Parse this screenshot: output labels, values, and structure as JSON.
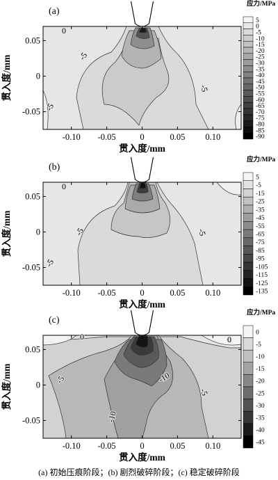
{
  "caption": "(a) 初始压痕阶段；(b) 剧烈破碎阶段；(c) 稳定破碎阶段",
  "chart_data": [
    {
      "type": "heatmap",
      "panel_label": "(a)",
      "xlabel": "贯入度/mm",
      "ylabel": "贯入度/mm",
      "xlim": [
        -0.14,
        0.14
      ],
      "ylim": [
        -0.075,
        0.07
      ],
      "xticks": [
        -0.1,
        -0.05,
        0,
        0.05,
        0.1
      ],
      "xtick_labels": [
        "-0.10",
        "-0.05",
        "0",
        "0.05",
        "0.10"
      ],
      "yticks": [
        -0.05,
        0,
        0.05
      ],
      "ytick_labels": [
        "-0.05",
        "0",
        "0.05"
      ],
      "colorbar_title": "应力/MPa",
      "colorbar_levels": [
        5,
        0,
        -5,
        -10,
        -15,
        -20,
        -25,
        -30,
        -35,
        -40,
        -45,
        -50,
        -55,
        -60,
        -65,
        -70,
        -75,
        -80,
        -85,
        -90
      ],
      "contour_labels": [
        "0",
        "-5",
        "-5",
        "-5"
      ],
      "peak_stress": -90
    },
    {
      "type": "heatmap",
      "panel_label": "(b)",
      "xlabel": "贯入度/mm",
      "ylabel": "贯入度/mm",
      "xlim": [
        -0.14,
        0.14
      ],
      "ylim": [
        -0.075,
        0.07
      ],
      "xticks": [
        -0.1,
        -0.05,
        0,
        0.05,
        0.1
      ],
      "xtick_labels": [
        "-0.10",
        "-0.05",
        "0",
        "0.05",
        "0.10"
      ],
      "yticks": [
        -0.05,
        0,
        0.05
      ],
      "ytick_labels": [
        "-0.05",
        "0",
        "0.05"
      ],
      "colorbar_title": "应力/MPa",
      "colorbar_levels": [
        5,
        -5,
        -15,
        -25,
        -35,
        -45,
        -55,
        -65,
        -75,
        -85,
        -95,
        -105,
        -115,
        -125,
        -135
      ],
      "contour_labels": [
        "0",
        "-5",
        "-5",
        "-5"
      ],
      "peak_stress": -135
    },
    {
      "type": "heatmap",
      "panel_label": "(c)",
      "xlabel": "贯入度/mm",
      "ylabel": "贯入度/mm",
      "xlim": [
        -0.14,
        0.14
      ],
      "ylim": [
        -0.075,
        0.07
      ],
      "xticks": [
        -0.1,
        -0.05,
        0,
        0.05,
        0.1
      ],
      "xtick_labels": [
        "-0.10",
        "-0.05",
        "0",
        "0.05",
        "0.10"
      ],
      "yticks": [
        -0.05,
        0,
        0.05
      ],
      "ytick_labels": [
        "-0.05",
        "0",
        "0.05"
      ],
      "colorbar_title": "应力/MPa",
      "colorbar_levels": [
        0,
        -5,
        -10,
        -15,
        -20,
        -25,
        -30,
        -35,
        -40,
        -45
      ],
      "contour_labels": [
        "0",
        "0",
        "-5",
        "-5",
        "-10",
        "-10"
      ],
      "peak_stress": -45
    }
  ]
}
